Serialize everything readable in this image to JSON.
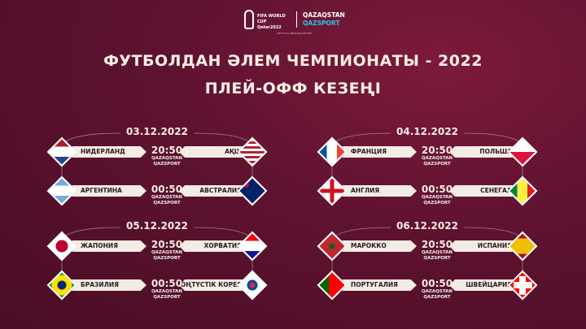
{
  "header": {
    "wc_line1": "FIFA WORLD CUP",
    "wc_line2": "Qatar2022",
    "brand1": "QAZAQSTAN",
    "brand2": "QAZSPORT",
    "official": "OFFICIAL BROADCASTER"
  },
  "title_line1": "ФУТБОЛДАН ӘЛЕМ ЧЕМПИОНАТЫ - 2022",
  "title_line2": "ПЛЕЙ-ОФФ КЕЗЕҢІ",
  "channels": [
    "QAZAQSTAN",
    "QAZSPORT"
  ],
  "colors": {
    "background": "#5e1230",
    "label_bg": "#f3ece4",
    "accent": "#2ec4e8"
  },
  "groups": [
    {
      "date": "03.12.2022",
      "matches": [
        {
          "home": "НИДЕРЛАНД",
          "home_flag": "NL",
          "time": "20:50",
          "away": "АҚШ",
          "away_flag": "US"
        },
        {
          "home": "АРГЕНТИНА",
          "home_flag": "AR",
          "time": "00:50",
          "away": "АВСТРАЛИЯ",
          "away_flag": "AU"
        }
      ]
    },
    {
      "date": "04.12.2022",
      "matches": [
        {
          "home": "ФРАНЦИЯ",
          "home_flag": "FR",
          "time": "20:50",
          "away": "ПОЛЬША",
          "away_flag": "PL"
        },
        {
          "home": "АНГЛИЯ",
          "home_flag": "EN",
          "time": "00:50",
          "away": "СЕНЕГАЛ",
          "away_flag": "SN"
        }
      ]
    },
    {
      "date": "05.12.2022",
      "matches": [
        {
          "home": "ЖАПОНИЯ",
          "home_flag": "JP",
          "time": "20:50",
          "away": "ХОРВАТИЯ",
          "away_flag": "HR"
        },
        {
          "home": "БРАЗИЛИЯ",
          "home_flag": "BR",
          "time": "00:50",
          "away": "ОҢТҮСТІК КОРЕЯ",
          "away_flag": "KR"
        }
      ]
    },
    {
      "date": "06.12.2022",
      "matches": [
        {
          "home": "МАРОККО",
          "home_flag": "MA",
          "time": "20:50",
          "away": "ИСПАНИЯ",
          "away_flag": "ES"
        },
        {
          "home": "ПОРТУГАЛИЯ",
          "home_flag": "PT",
          "time": "00:50",
          "away": "ШВЕЙЦАРИЯ",
          "away_flag": "CH"
        }
      ]
    }
  ]
}
